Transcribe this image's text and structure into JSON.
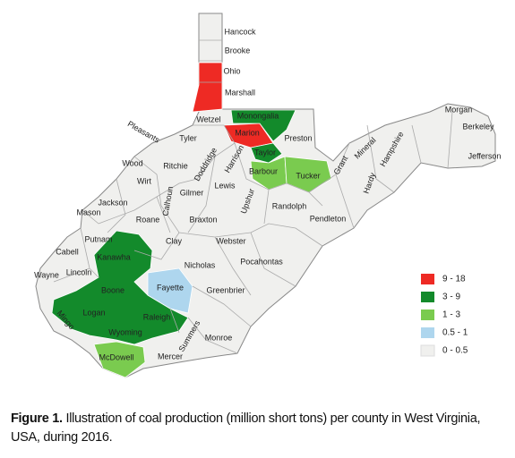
{
  "map": {
    "counties": [
      "Hancock",
      "Brooke",
      "Ohio",
      "Marshall",
      "Wetzel",
      "Monongalia",
      "Marion",
      "Preston",
      "Pleasants",
      "Tyler",
      "Taylor",
      "Barbour",
      "Tucker",
      "Wood",
      "Ritchie",
      "Doddridge",
      "Harrison",
      "Wirt",
      "Lewis",
      "Gilmer",
      "Calhoun",
      "Jackson",
      "Mason",
      "Roane",
      "Braxton",
      "Upshur",
      "Randolph",
      "Grant",
      "Mineral",
      "Hampshire",
      "Hardy",
      "Pendleton",
      "Morgan",
      "Berkeley",
      "Jefferson",
      "Putnam",
      "Clay",
      "Webster",
      "Cabell",
      "Kanawha",
      "Lincoln",
      "Wayne",
      "Nicholas",
      "Pocahontas",
      "Fayette",
      "Greenbrier",
      "Boone",
      "Logan",
      "Mingo",
      "Raleigh",
      "Wyoming",
      "Summers",
      "Monroe",
      "McDowell",
      "Mercer"
    ],
    "legend": [
      {
        "label": "9 - 18",
        "color": "#ee2a24"
      },
      {
        "label": "3 - 9",
        "color": "#138a2b"
      },
      {
        "label": "1 - 3",
        "color": "#7acb4f"
      },
      {
        "label": "0.5 - 1",
        "color": "#aed6ee"
      },
      {
        "label": "0 - 0.5",
        "color": "#f0f0ee"
      }
    ]
  },
  "caption": {
    "label": "Figure 1.",
    "text": "Illustration of coal production (million short tons) per county in West Virginia, USA, during 2016."
  }
}
